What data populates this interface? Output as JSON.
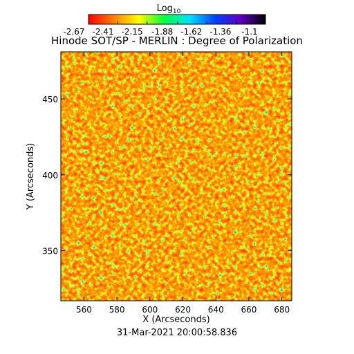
{
  "chart_data": {
    "type": "heatmap",
    "title": "Hinode SOT/SP - MERLIN : Degree of Polarization",
    "xlabel": "X (Arcseconds)",
    "ylabel": "Y (Arcseconds)",
    "footer": "31-Mar-2021 20:00:58.836",
    "xlim": [
      546,
      686
    ],
    "xticks": [
      560,
      580,
      600,
      620,
      640,
      660,
      680
    ],
    "ylim": [
      317,
      481
    ],
    "yticks": [
      350,
      400,
      450
    ],
    "colorbar": {
      "label": "Log",
      "label_subscript": "10",
      "clim": [
        -2.67,
        -1.1
      ],
      "ticks": [
        -2.67,
        -2.41,
        -2.15,
        -1.88,
        -1.62,
        -1.36,
        -1.1
      ],
      "colors": [
        "#ff0000",
        "#ff8000",
        "#ffff00",
        "#00ff40",
        "#00e0ff",
        "#0040ff",
        "#6000c0",
        "#000000"
      ]
    }
  }
}
